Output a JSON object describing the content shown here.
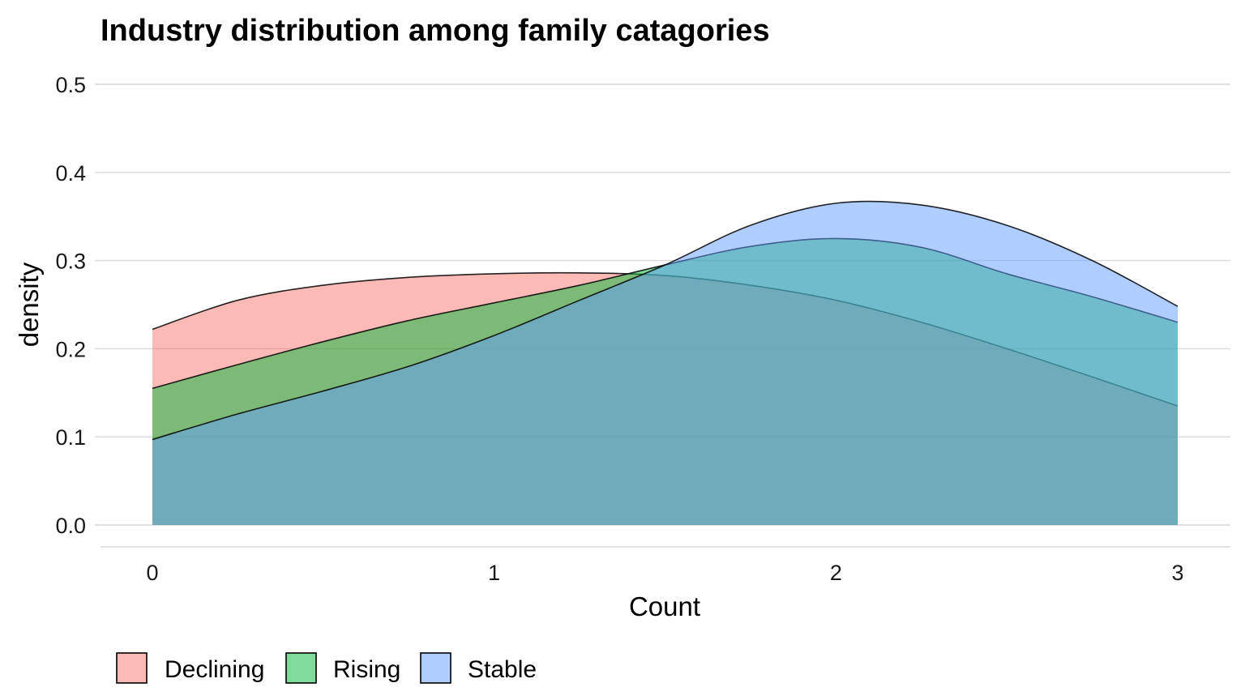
{
  "chart_data": {
    "type": "area",
    "title": "Industry distribution among family catagories",
    "xlabel": "Count",
    "ylabel": "density",
    "xlim": [
      0,
      3
    ],
    "ylim": [
      0,
      0.5
    ],
    "x_ticks": [
      0,
      1,
      2,
      3
    ],
    "x_tick_labels": [
      "0",
      "1",
      "2",
      "3"
    ],
    "y_ticks": [
      0,
      0.1,
      0.2,
      0.3,
      0.4,
      0.5
    ],
    "y_tick_labels": [
      "0.0",
      "0.1",
      "0.2",
      "0.3",
      "0.4",
      "0.5"
    ],
    "grid": true,
    "legend_position": "bottom-left",
    "fill_opacity": 0.5,
    "x": [
      0,
      0.25,
      0.5,
      0.75,
      1,
      1.25,
      1.5,
      1.75,
      2,
      2.25,
      2.5,
      2.75,
      3
    ],
    "series": [
      {
        "name": "Declining",
        "color": "#F8766D",
        "values": [
          0.222,
          0.255,
          0.272,
          0.281,
          0.285,
          0.286,
          0.283,
          0.272,
          0.255,
          0.23,
          0.2,
          0.168,
          0.135
        ]
      },
      {
        "name": "Rising",
        "color": "#00BA38",
        "values": [
          0.155,
          0.182,
          0.208,
          0.232,
          0.252,
          0.272,
          0.295,
          0.316,
          0.325,
          0.315,
          0.285,
          0.259,
          0.23
        ]
      },
      {
        "name": "Stable",
        "color": "#619CFF",
        "values": [
          0.097,
          0.126,
          0.152,
          0.18,
          0.215,
          0.255,
          0.295,
          0.34,
          0.365,
          0.363,
          0.34,
          0.3,
          0.248
        ]
      }
    ]
  }
}
